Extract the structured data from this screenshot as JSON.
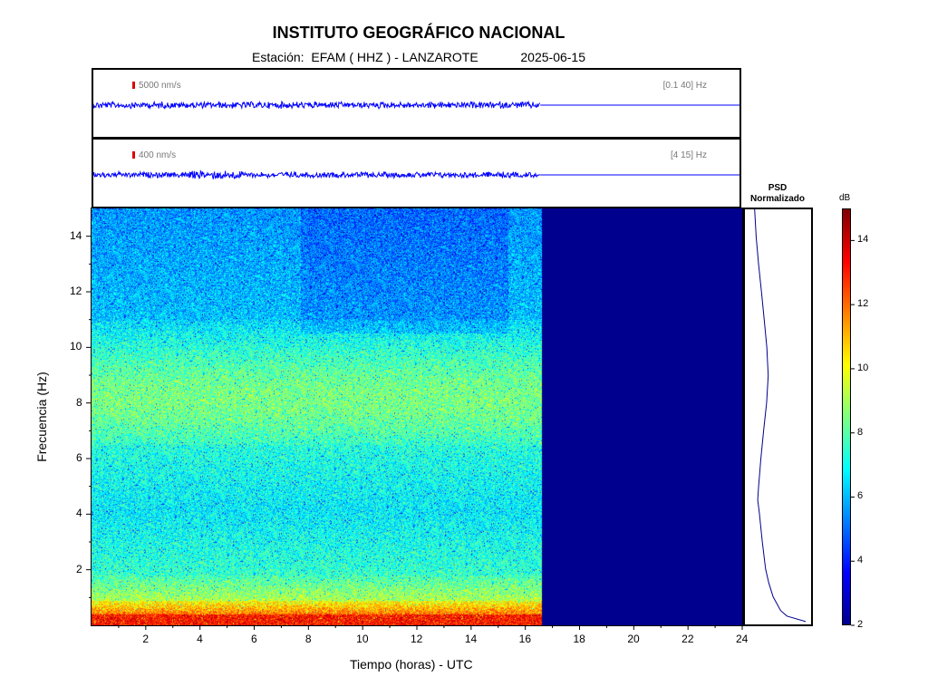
{
  "header": {
    "title": "INSTITUTO GEOGRÁFICO NACIONAL",
    "station_prefix": "Estación:",
    "station": "EFAM ( HHZ ) - LANZAROTE",
    "date": "2025-06-15"
  },
  "traces": [
    {
      "scale": "5000 nm/s",
      "band": "[0.1 40] Hz",
      "data_end_hours": 16.6
    },
    {
      "scale": "400 nm/s",
      "band": "[4 15] Hz",
      "data_end_hours": 16.6
    }
  ],
  "psd": {
    "title_line1": "PSD",
    "title_line2": "Normalizado"
  },
  "colorbar": {
    "unit": "dB",
    "min": 2,
    "max": 15,
    "ticks": [
      "2",
      "4",
      "6",
      "8",
      "10",
      "12",
      "14"
    ]
  },
  "colors": {
    "trace": "#0000ff",
    "no_data": "#00008f",
    "psd_line": "#00008b",
    "scale_bar": "#dd0000"
  },
  "chart_data": {
    "type": "heatmap",
    "xlabel": "Tiempo (horas) - UTC",
    "ylabel": "Frecuencia  (Hz)",
    "xlim": [
      0,
      24
    ],
    "ylim": [
      0,
      15
    ],
    "x_ticks": [
      "2",
      "4",
      "6",
      "8",
      "10",
      "12",
      "14",
      "16",
      "18",
      "20",
      "22",
      "24"
    ],
    "y_ticks": [
      "2",
      "4",
      "6",
      "8",
      "10",
      "12",
      "14"
    ],
    "data_end_hours": 16.6,
    "psd_profile_freq_hz": [
      0.1,
      0.3,
      0.5,
      1,
      1.5,
      2,
      3,
      4,
      4.5,
      5,
      6,
      7,
      8,
      9,
      9.5,
      10,
      11,
      12,
      13,
      14,
      15
    ],
    "psd_profile_norm": [
      0.95,
      0.6,
      0.5,
      0.38,
      0.3,
      0.25,
      0.18,
      0.12,
      0.11,
      0.12,
      0.15,
      0.2,
      0.24,
      0.27,
      0.28,
      0.26,
      0.2,
      0.16,
      0.1,
      0.07,
      0.05
    ]
  }
}
